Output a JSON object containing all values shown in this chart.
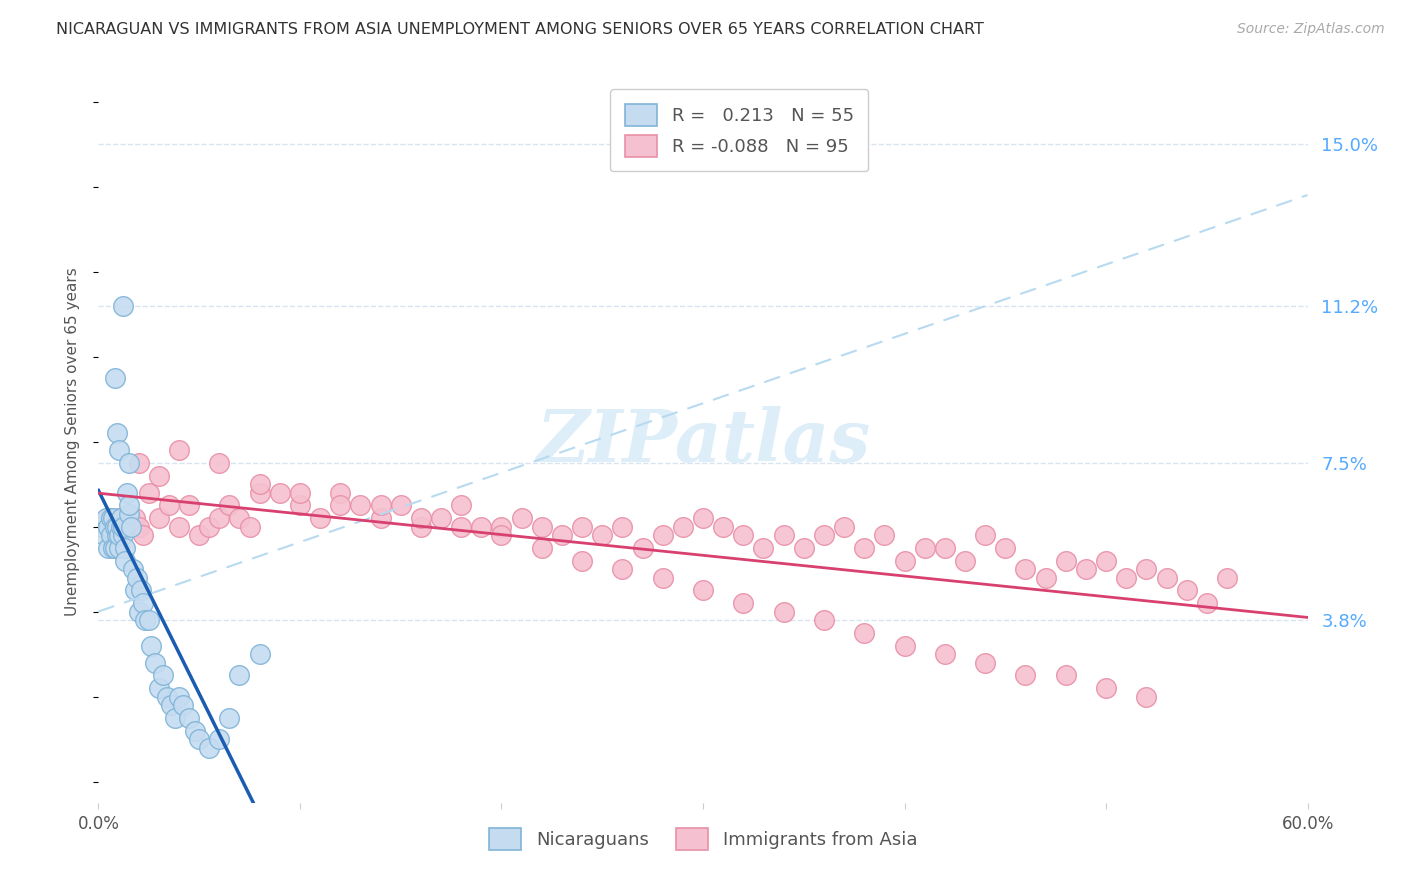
{
  "title": "NICARAGUAN VS IMMIGRANTS FROM ASIA UNEMPLOYMENT AMONG SENIORS OVER 65 YEARS CORRELATION CHART",
  "source": "Source: ZipAtlas.com",
  "ylabel": "Unemployment Among Seniors over 65 years",
  "xlim": [
    0.0,
    0.6
  ],
  "ylim": [
    -0.005,
    0.165
  ],
  "ytick_positions": [
    0.038,
    0.075,
    0.112,
    0.15
  ],
  "ytick_labels": [
    "3.8%",
    "7.5%",
    "11.2%",
    "15.0%"
  ],
  "blue_R": "0.213",
  "blue_N": "55",
  "pink_R": "-0.088",
  "pink_N": "95",
  "blue_scatter_color": "#c5dcf0",
  "blue_scatter_edge": "#80b4d8",
  "pink_scatter_color": "#f5c0d0",
  "pink_scatter_edge": "#e890a8",
  "blue_line_color": "#1a5cb0",
  "pink_line_color": "#d84070",
  "dashed_line_color": "#b8daf0",
  "grid_color": "#d8e4f0",
  "blue_x": [
    0.002,
    0.003,
    0.004,
    0.005,
    0.005,
    0.006,
    0.006,
    0.007,
    0.007,
    0.008,
    0.008,
    0.009,
    0.009,
    0.01,
    0.01,
    0.011,
    0.011,
    0.012,
    0.012,
    0.013,
    0.013,
    0.014,
    0.015,
    0.015,
    0.016,
    0.017,
    0.018,
    0.019,
    0.02,
    0.021,
    0.022,
    0.023,
    0.025,
    0.026,
    0.028,
    0.03,
    0.032,
    0.034,
    0.036,
    0.038,
    0.04,
    0.042,
    0.045,
    0.048,
    0.05,
    0.055,
    0.06,
    0.065,
    0.07,
    0.08,
    0.008,
    0.009,
    0.01,
    0.012,
    0.015
  ],
  "blue_y": [
    0.06,
    0.058,
    0.062,
    0.06,
    0.055,
    0.058,
    0.062,
    0.055,
    0.062,
    0.06,
    0.055,
    0.058,
    0.06,
    0.055,
    0.058,
    0.06,
    0.062,
    0.058,
    0.06,
    0.055,
    0.052,
    0.068,
    0.063,
    0.065,
    0.06,
    0.05,
    0.045,
    0.048,
    0.04,
    0.045,
    0.042,
    0.038,
    0.038,
    0.032,
    0.028,
    0.022,
    0.025,
    0.02,
    0.018,
    0.015,
    0.02,
    0.018,
    0.015,
    0.012,
    0.01,
    0.008,
    0.01,
    0.015,
    0.025,
    0.03,
    0.095,
    0.082,
    0.078,
    0.112,
    0.075
  ],
  "pink_x": [
    0.005,
    0.008,
    0.01,
    0.012,
    0.015,
    0.018,
    0.02,
    0.022,
    0.025,
    0.03,
    0.035,
    0.04,
    0.045,
    0.05,
    0.055,
    0.06,
    0.065,
    0.07,
    0.075,
    0.08,
    0.09,
    0.1,
    0.11,
    0.12,
    0.13,
    0.14,
    0.15,
    0.16,
    0.17,
    0.18,
    0.19,
    0.2,
    0.21,
    0.22,
    0.23,
    0.24,
    0.25,
    0.26,
    0.27,
    0.28,
    0.29,
    0.3,
    0.31,
    0.32,
    0.33,
    0.34,
    0.35,
    0.36,
    0.37,
    0.38,
    0.39,
    0.4,
    0.41,
    0.42,
    0.43,
    0.44,
    0.45,
    0.46,
    0.47,
    0.48,
    0.49,
    0.5,
    0.51,
    0.52,
    0.53,
    0.54,
    0.55,
    0.56,
    0.02,
    0.03,
    0.04,
    0.06,
    0.08,
    0.1,
    0.12,
    0.14,
    0.16,
    0.18,
    0.2,
    0.22,
    0.24,
    0.26,
    0.28,
    0.3,
    0.32,
    0.34,
    0.36,
    0.38,
    0.4,
    0.42,
    0.44,
    0.46,
    0.48,
    0.5,
    0.52
  ],
  "pink_y": [
    0.062,
    0.06,
    0.062,
    0.06,
    0.06,
    0.062,
    0.06,
    0.058,
    0.068,
    0.062,
    0.065,
    0.06,
    0.065,
    0.058,
    0.06,
    0.062,
    0.065,
    0.062,
    0.06,
    0.068,
    0.068,
    0.065,
    0.062,
    0.068,
    0.065,
    0.062,
    0.065,
    0.06,
    0.062,
    0.065,
    0.06,
    0.06,
    0.062,
    0.06,
    0.058,
    0.06,
    0.058,
    0.06,
    0.055,
    0.058,
    0.06,
    0.062,
    0.06,
    0.058,
    0.055,
    0.058,
    0.055,
    0.058,
    0.06,
    0.055,
    0.058,
    0.052,
    0.055,
    0.055,
    0.052,
    0.058,
    0.055,
    0.05,
    0.048,
    0.052,
    0.05,
    0.052,
    0.048,
    0.05,
    0.048,
    0.045,
    0.042,
    0.048,
    0.075,
    0.072,
    0.078,
    0.075,
    0.07,
    0.068,
    0.065,
    0.065,
    0.062,
    0.06,
    0.058,
    0.055,
    0.052,
    0.05,
    0.048,
    0.045,
    0.042,
    0.04,
    0.038,
    0.035,
    0.032,
    0.03,
    0.028,
    0.025,
    0.025,
    0.022,
    0.02
  ],
  "watermark": "ZIPatlas",
  "watermark_color": "#ddeef8"
}
